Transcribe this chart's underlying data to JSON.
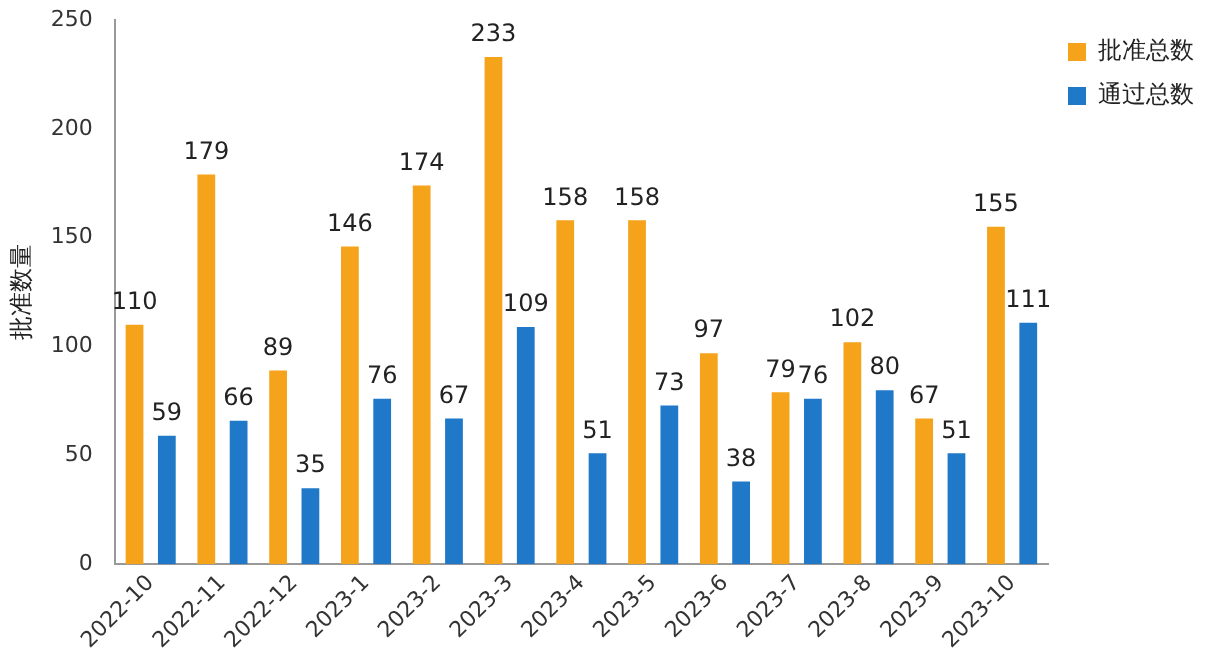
{
  "chart_data": {
    "type": "bar",
    "ylabel": "批准数量",
    "categories": [
      "2022-10",
      "2022-11",
      "2022-12",
      "2023-1",
      "2023-2",
      "2023-3",
      "2023-4",
      "2023-5",
      "2023-6",
      "2023-7",
      "2023-8",
      "2023-9",
      "2023-10"
    ],
    "series": [
      {
        "name": "批准总数",
        "color": "#f5a31a",
        "values": [
          110,
          179,
          89,
          146,
          174,
          233,
          158,
          158,
          97,
          79,
          102,
          67,
          155
        ]
      },
      {
        "name": "通过总数",
        "color": "#1f78c8",
        "values": [
          59,
          66,
          35,
          76,
          67,
          109,
          51,
          73,
          38,
          76,
          80,
          51,
          111
        ]
      }
    ],
    "ylim": [
      0,
      250
    ],
    "yticks": [
      0,
      50,
      100,
      150,
      200,
      250
    ],
    "grid": false,
    "legend": "top right",
    "data_labels": true
  }
}
